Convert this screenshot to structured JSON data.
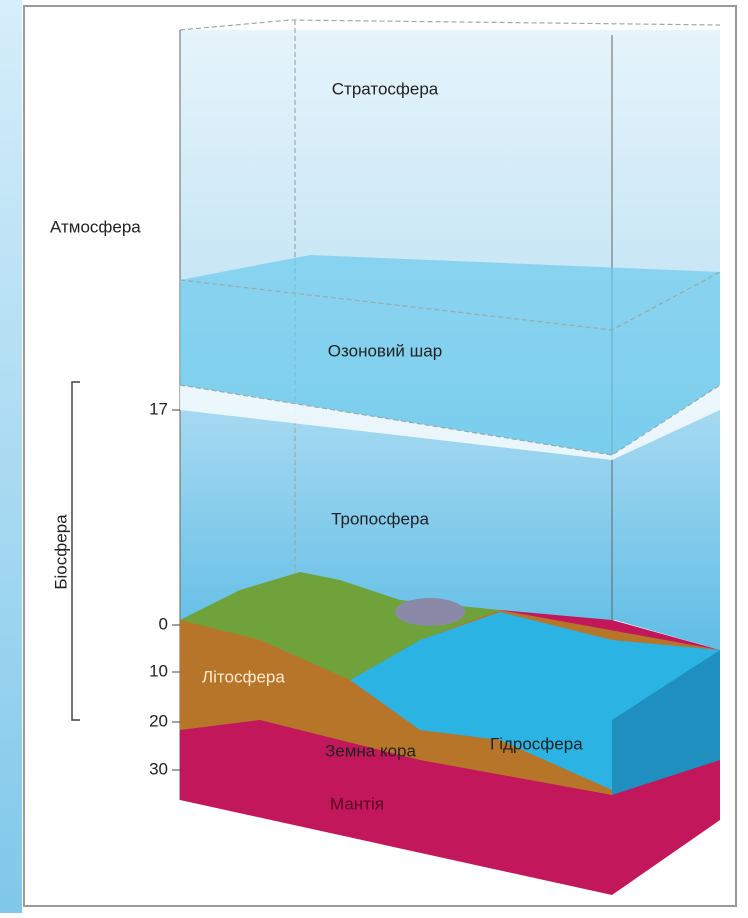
{
  "labels": {
    "stratosphere": "Стратосфера",
    "atmosphere": "Атмосфера",
    "ozone_layer": "Озоновий шар",
    "troposphere": "Тропосфера",
    "biosphere": "Біосфера",
    "lithosphere": "Літосфера",
    "crust": "Земна кора",
    "hydrosphere": "Гідросфера",
    "mantle": "Мантія"
  },
  "scale": [
    "17",
    "0",
    "10",
    "20",
    "30"
  ]
}
